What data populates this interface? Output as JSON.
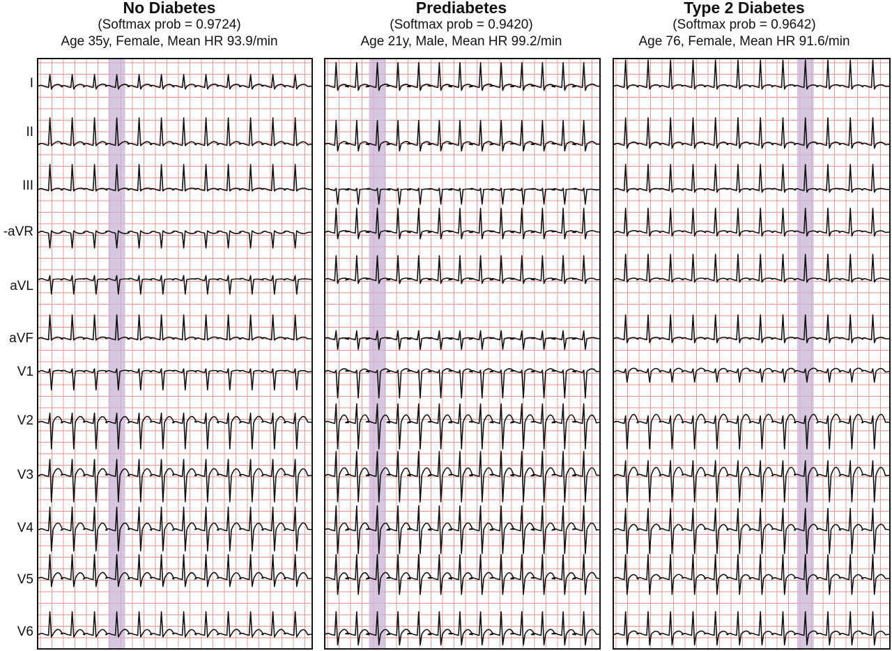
{
  "leads": [
    "I",
    "II",
    "III",
    "-aVR",
    "aVL",
    "aVF",
    "V1",
    "V2",
    "V3",
    "V4",
    "V5",
    "V6"
  ],
  "panels": [
    {
      "title": "No Diabetes",
      "softmax": "(Softmax prob = 0.9724)",
      "info": "Age 35y, Female, Mean HR 93.9/min",
      "beats": 12,
      "highlight_beat": 3,
      "morph": [
        {
          "qrs": 0.45,
          "s": -0.1,
          "t": 0.08
        },
        {
          "qrs": 1.0,
          "s": -0.05,
          "t": 0.1
        },
        {
          "qrs": 0.95,
          "s": -0.05,
          "t": 0.05
        },
        {
          "qrs": -0.6,
          "s": 0.05,
          "t": -0.05
        },
        {
          "qrs": 0.15,
          "s": -0.55,
          "t": 0.02
        },
        {
          "qrs": 0.9,
          "s": -0.05,
          "t": 0.06
        },
        {
          "qrs": 0.1,
          "s": -0.7,
          "t": 0.04
        },
        {
          "qrs": 0.35,
          "s": -1.0,
          "t": 0.22
        },
        {
          "qrs": 0.6,
          "s": -1.0,
          "t": 0.25
        },
        {
          "qrs": 0.85,
          "s": -0.8,
          "t": 0.25
        },
        {
          "qrs": 0.9,
          "s": -0.3,
          "t": 0.22
        },
        {
          "qrs": 0.85,
          "s": -0.1,
          "t": 0.18
        }
      ]
    },
    {
      "title": "Prediabetes",
      "softmax": "(Softmax prob = 0.9420)",
      "info": "Age 21y, Male, Mean HR 99.2/min",
      "beats": 13,
      "highlight_beat": 2,
      "morph": [
        {
          "qrs": 0.9,
          "s": -0.15,
          "t": 0.08
        },
        {
          "qrs": 0.9,
          "s": -0.25,
          "t": 0.1
        },
        {
          "qrs": 0.05,
          "s": -0.55,
          "t": 0.02
        },
        {
          "qrs": 0.9,
          "s": -0.25,
          "t": 0.05
        },
        {
          "qrs": 0.9,
          "s": -0.15,
          "t": 0.05
        },
        {
          "qrs": 0.3,
          "s": -0.4,
          "t": 0.04
        },
        {
          "qrs": 0.05,
          "s": -1.0,
          "t": 0.1
        },
        {
          "qrs": 0.7,
          "s": -1.0,
          "t": 0.28
        },
        {
          "qrs": 0.9,
          "s": -1.0,
          "t": 0.28
        },
        {
          "qrs": 0.9,
          "s": -0.9,
          "t": 0.25
        },
        {
          "qrs": 0.9,
          "s": -0.6,
          "t": 0.22
        },
        {
          "qrs": 0.85,
          "s": -0.4,
          "t": 0.18
        }
      ]
    },
    {
      "title": "Type 2 Diabetes",
      "softmax": "(Softmax prob = 0.9642)",
      "info": "Age 76, Female, Mean HR 91.6/min",
      "beats": 12,
      "highlight_beat": 8,
      "morph": [
        {
          "qrs": 1.0,
          "s": -0.1,
          "t": 0.06
        },
        {
          "qrs": 1.0,
          "s": -0.15,
          "t": 0.08
        },
        {
          "qrs": 0.95,
          "s": -0.1,
          "t": 0.04
        },
        {
          "qrs": 0.9,
          "s": -0.15,
          "t": 0.05
        },
        {
          "qrs": 0.95,
          "s": -0.1,
          "t": 0.05
        },
        {
          "qrs": 0.9,
          "s": -0.15,
          "t": 0.05
        },
        {
          "qrs": 0.1,
          "s": -0.4,
          "t": 0.12
        },
        {
          "qrs": 0.25,
          "s": -1.0,
          "t": 0.3
        },
        {
          "qrs": 0.55,
          "s": -1.0,
          "t": 0.3
        },
        {
          "qrs": 0.8,
          "s": -0.9,
          "t": 0.2
        },
        {
          "qrs": 0.9,
          "s": -0.6,
          "t": 0.15
        },
        {
          "qrs": 0.85,
          "s": -0.4,
          "t": 0.12
        }
      ]
    }
  ],
  "colors": {
    "grid": "#e7908a",
    "trace": "#111111",
    "highlight": "#c8b3d6",
    "frame": "#111111"
  }
}
